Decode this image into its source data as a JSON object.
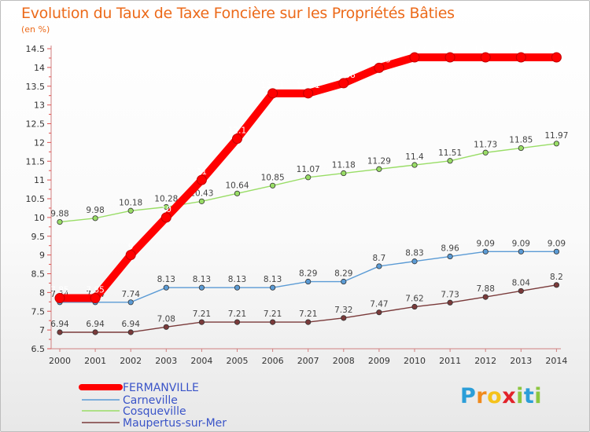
{
  "header": {
    "title": "Evolution du Taux de Taxe Foncière sur les Propriétés Bâties",
    "unit": "(en %)"
  },
  "logo": {
    "letters": [
      "P",
      "r",
      "o",
      "x",
      "i",
      "t",
      "i"
    ],
    "colors": [
      "#2b9ed8",
      "#f08a1d",
      "#f5c21b",
      "#e2232a",
      "#8cc63f",
      "#2b9ed8",
      "#8cc63f"
    ]
  },
  "chart_data": {
    "type": "line",
    "title": "Evolution du Taux de Taxe Foncière sur les Propriétés Bâties",
    "ylabel": "(en %)",
    "xlabel": "",
    "ylim": [
      6.5,
      14.5
    ],
    "yticks": [
      "6.5",
      "7",
      "7.5",
      "8",
      "8.5",
      "9",
      "9.5",
      "10",
      "10.5",
      "11",
      "11.5",
      "12",
      "12.5",
      "13",
      "13.5",
      "14",
      "14.5"
    ],
    "x": [
      "2000",
      "2001",
      "2002",
      "2003",
      "2004",
      "2005",
      "2006",
      "2007",
      "2008",
      "2009",
      "2010",
      "2011",
      "2012",
      "2013",
      "2014"
    ],
    "grid": false,
    "legend_position": "bottom-left",
    "series": [
      {
        "name": "FERMANVILLE",
        "color": "#ff0000",
        "values": [
          7.85,
          7.85,
          9,
          10,
          11,
          12.1,
          13.31,
          13.31,
          13.58,
          13.99,
          14.27,
          14.27,
          14.27,
          14.27,
          14.27
        ],
        "labels": [
          "7.85",
          "7.85",
          "9",
          "10",
          "11",
          "12.1",
          "13.31",
          "13.31",
          "13.58",
          "13.99",
          "14.27",
          "14.27",
          "14.27",
          "14.27",
          "14.27"
        ]
      },
      {
        "name": "Carneville",
        "color": "#5b9bd5",
        "values": [
          7.74,
          7.74,
          7.74,
          8.13,
          8.13,
          8.13,
          8.13,
          8.29,
          8.29,
          8.7,
          8.83,
          8.96,
          9.09,
          9.09,
          9.09
        ],
        "labels": [
          "7.74",
          "7.74",
          "7.74",
          "8.13",
          "8.13",
          "8.13",
          "8.13",
          "8.29",
          "8.29",
          "8.7",
          "8.83",
          "8.96",
          "9.09",
          "9.09",
          "9.09"
        ]
      },
      {
        "name": "Cosqueville",
        "color": "#99dd66",
        "values": [
          9.88,
          9.98,
          10.18,
          10.28,
          10.43,
          10.64,
          10.85,
          11.07,
          11.18,
          11.29,
          11.4,
          11.51,
          11.73,
          11.85,
          11.97
        ],
        "labels": [
          "9.88",
          "9.98",
          "10.18",
          "10.28",
          "10.43",
          "10.64",
          "10.85",
          "11.07",
          "11.18",
          "11.29",
          "11.4",
          "11.51",
          "11.73",
          "11.85",
          "11.97"
        ]
      },
      {
        "name": "Maupertus-sur-Mer",
        "color": "#7a3a3a",
        "values": [
          6.94,
          6.94,
          6.94,
          7.08,
          7.21,
          7.21,
          7.21,
          7.21,
          7.32,
          7.47,
          7.62,
          7.73,
          7.88,
          8.04,
          8.2
        ],
        "labels": [
          "6.94",
          "6.94",
          "6.94",
          "7.08",
          "7.21",
          "7.21",
          "7.21",
          "7.21",
          "7.32",
          "7.47",
          "7.62",
          "7.73",
          "7.88",
          "8.04",
          "8.2"
        ]
      }
    ]
  }
}
